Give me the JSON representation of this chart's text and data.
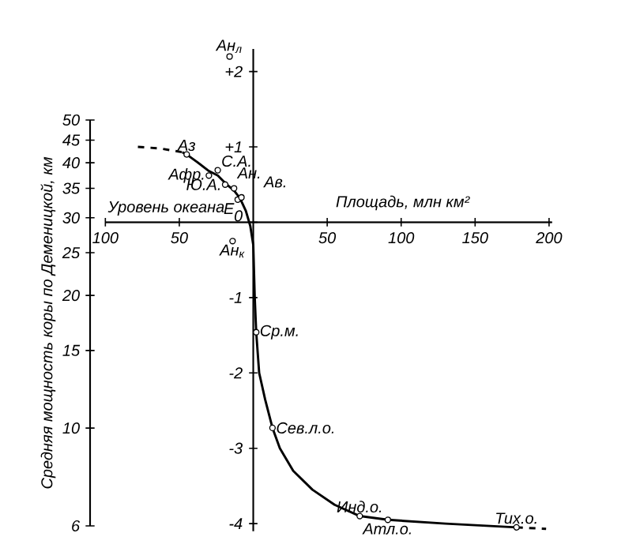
{
  "chart_data": {
    "type": "line",
    "xlabel": "Площадь, млн км²",
    "y2label": "Средняя мощность коры по Деменицкой, км",
    "xlim": [
      -100,
      202
    ],
    "ylim": [
      -4.1,
      2.3
    ],
    "xticks": [
      {
        "value": -100,
        "label": "100"
      },
      {
        "value": -50,
        "label": "50"
      },
      50,
      100,
      150,
      200
    ],
    "yticks": [
      {
        "value": 2,
        "label": "+2"
      },
      {
        "value": 1,
        "label": "+1"
      },
      0,
      -1,
      -2,
      -3,
      -4
    ],
    "y2lim": [
      6,
      50
    ],
    "y2ticks": [
      6,
      10,
      15,
      20,
      25,
      30,
      35,
      40,
      45,
      50
    ],
    "log": "y2",
    "ref_lines": [
      {
        "axis": "y",
        "value": 0,
        "label": "Уровень океана"
      }
    ],
    "series": [
      {
        "type": "line",
        "line_style": "dashed",
        "color": "#000000",
        "x": [
          -78,
          -63,
          -48
        ],
        "values": [
          1.0,
          0.98,
          0.93
        ]
      },
      {
        "type": "line",
        "line_style": "solid",
        "color": "#000000",
        "x": [
          -48,
          -45,
          -38,
          -30,
          -24,
          -19,
          -13,
          -9,
          -5,
          -2,
          0,
          1,
          2,
          4,
          8,
          13,
          18,
          27,
          40,
          55,
          72,
          91,
          130,
          178
        ],
        "values": [
          0.93,
          0.9,
          0.8,
          0.68,
          0.62,
          0.52,
          0.42,
          0.32,
          0.15,
          -0.05,
          -0.3,
          -1.0,
          -1.46,
          -2.0,
          -2.35,
          -2.73,
          -3.0,
          -3.3,
          -3.55,
          -3.75,
          -3.9,
          -3.95,
          -4.0,
          -4.05
        ]
      },
      {
        "type": "line",
        "line_style": "dashed",
        "color": "#000000",
        "x": [
          178,
          198
        ],
        "values": [
          -4.05,
          -4.07
        ]
      },
      {
        "type": "scatter",
        "marker": "circle",
        "color": "#000000",
        "x": [
          -45,
          -24,
          -30,
          -19,
          -13,
          -10.5,
          -8,
          -16,
          -14,
          2,
          13,
          72,
          91,
          178
        ],
        "values": [
          0.9,
          0.69,
          0.62,
          0.5,
          0.45,
          0.3,
          0.33,
          2.2,
          -0.25,
          -1.46,
          -2.73,
          -3.9,
          -3.95,
          -4.05
        ]
      }
    ],
    "annotations": [
      {
        "text": "Аз",
        "x": -45,
        "y": 0.9
      },
      {
        "text": "С.А.",
        "x": -24,
        "y": 0.69
      },
      {
        "text": "Афр.",
        "x": -30,
        "y": 0.62
      },
      {
        "text": "Ю.А.",
        "x": -19,
        "y": 0.5
      },
      {
        "text": "Ан.",
        "x": -13,
        "y": 0.45
      },
      {
        "text": "Е",
        "x": -10.5,
        "y": 0.3
      },
      {
        "text": "Ав.",
        "x": -8,
        "y": 0.33
      },
      {
        "text": "Ан$_{л}$",
        "x": -16,
        "y": 2.2
      },
      {
        "text": "Ан$_{к}$",
        "x": -14,
        "y": -0.25
      },
      {
        "text": "Ср.м.",
        "x": 2,
        "y": -1.46
      },
      {
        "text": "Сев.л.о.",
        "x": 13,
        "y": -2.73
      },
      {
        "text": "Инд.о.",
        "x": 72,
        "y": -3.9
      },
      {
        "text": "Атл.о.",
        "x": 91,
        "y": -3.95
      },
      {
        "text": "Тих.о.",
        "x": 178,
        "y": -4.05
      }
    ]
  }
}
